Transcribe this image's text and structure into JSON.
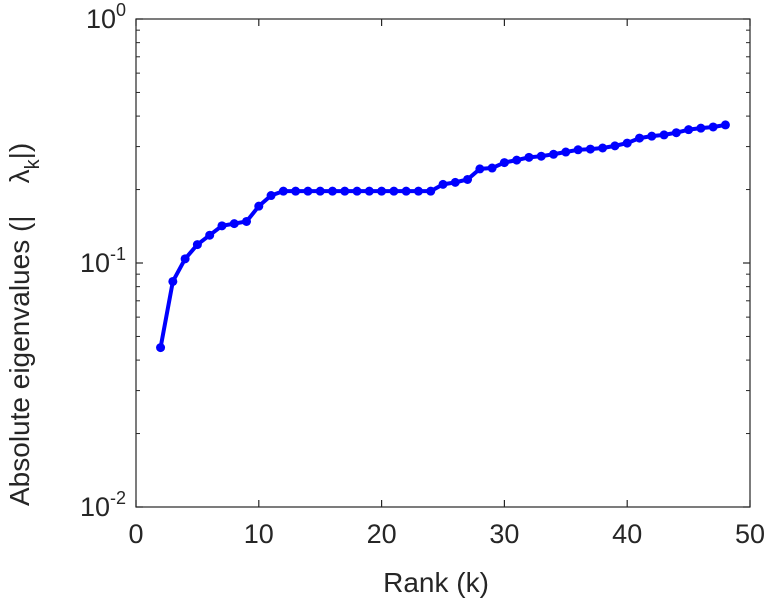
{
  "chart_data": {
    "type": "line",
    "xlabel": "Rank (k)",
    "ylabel": "Absolute eigenvalues (|λk|)",
    "ylabel_text": "Absolute eigenvalues (|",
    "ylabel_symbol": "λ",
    "ylabel_subscript": "k",
    "ylabel_close": "|)",
    "xlim": [
      0,
      50
    ],
    "ylim": [
      0.01,
      1
    ],
    "yscale": "log",
    "xticks": [
      0,
      10,
      20,
      30,
      40,
      50
    ],
    "xtick_labels": [
      "0",
      "10",
      "20",
      "30",
      "40",
      "50"
    ],
    "yticks": [
      0.01,
      0.1,
      1
    ],
    "ytick_labels": [
      {
        "base": "10",
        "exp": "-2"
      },
      {
        "base": "10",
        "exp": "-1"
      },
      {
        "base": "10",
        "exp": "0"
      }
    ],
    "grid": false,
    "line_color": "#0000ff",
    "axis_color": "#262626",
    "series": [
      {
        "x": [
          2,
          3,
          4,
          5,
          6,
          7,
          8,
          9,
          10,
          11,
          12,
          13,
          14,
          15,
          16,
          17,
          18,
          19,
          20,
          21,
          22,
          23,
          24,
          25,
          26,
          27,
          28,
          29,
          30,
          31,
          32,
          33,
          34,
          35,
          36,
          37,
          38,
          39,
          40,
          41,
          42,
          43,
          44,
          45,
          46,
          47,
          48
        ],
        "values": [
          0.045,
          0.084,
          0.104,
          0.119,
          0.13,
          0.142,
          0.145,
          0.148,
          0.171,
          0.189,
          0.197,
          0.197,
          0.197,
          0.197,
          0.197,
          0.197,
          0.197,
          0.197,
          0.197,
          0.197,
          0.197,
          0.197,
          0.197,
          0.21,
          0.214,
          0.22,
          0.243,
          0.245,
          0.258,
          0.264,
          0.271,
          0.274,
          0.279,
          0.285,
          0.291,
          0.293,
          0.296,
          0.302,
          0.31,
          0.325,
          0.331,
          0.335,
          0.342,
          0.352,
          0.357,
          0.361,
          0.368
        ]
      }
    ]
  }
}
